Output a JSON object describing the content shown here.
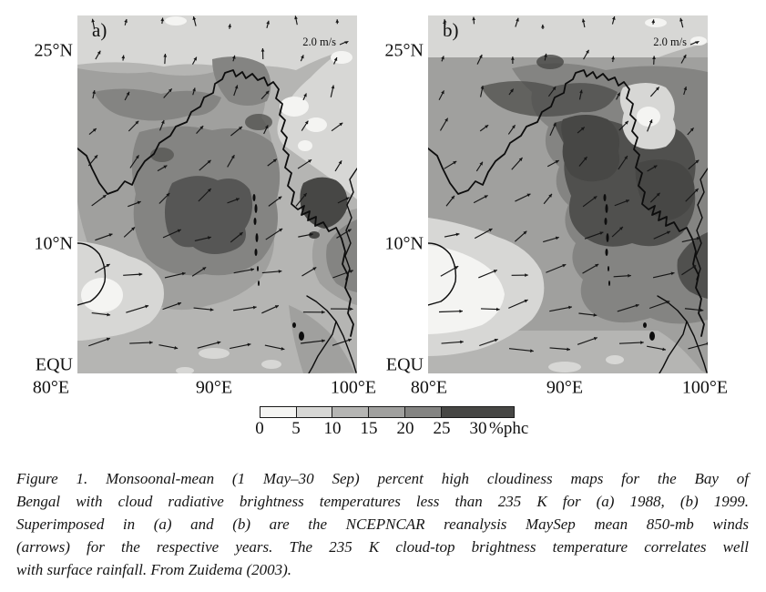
{
  "panels": [
    {
      "label": "a)",
      "ref_vector_label": "2.0 m/s"
    },
    {
      "label": "b)",
      "ref_vector_label": "2.0 m/s"
    }
  ],
  "axes": {
    "lat_labels": [
      "25°N",
      "10°N",
      "EQU"
    ],
    "lon_labels": [
      "80°E",
      "90°E",
      "100°E"
    ]
  },
  "colorbar": {
    "tick_labels": [
      "0",
      "5",
      "10",
      "15",
      "20",
      "25",
      "30"
    ],
    "unit_label": "%phc",
    "segment_colors": [
      "#f4f4f2",
      "#d7d7d5",
      "#b5b5b3",
      "#a0a09e",
      "#848482",
      "#474745"
    ]
  },
  "map": {
    "coast_color": "#0d0d0d",
    "arrow_color": "#161616"
  },
  "caption": {
    "lines": [
      "Figure 1.  Monsoonal-mean (1 May–30 Sep) percent high cloudiness maps for the Bay of",
      "Bengal with cloud radiative brightness temperatures less than 235 K for (a) 1988, (b) 1999.",
      "Superimposed in (a) and (b) are the NCEPNCAR reanalysis MaySep mean 850-mb winds",
      "(arrows) for the respective years. The 235 K cloud-top brightness temperature correlates well",
      "with surface rainfall. From Zuidema (2003)."
    ]
  },
  "chart_data": {
    "type": "heatmap",
    "title": "Monsoonal-mean (1 May–30 Sep) percent high cloudiness, Bay of Bengal",
    "panels": [
      {
        "id": "a",
        "year": "1988"
      },
      {
        "id": "b",
        "year": "1999"
      }
    ],
    "variable": "percent high cloudiness (%phc) with cloud radiative brightness temperatures < 235 K",
    "overlay": "NCEPNCAR reanalysis MaySep mean 850-mb winds (arrows), reference vector 2.0 m/s",
    "levels": [
      0,
      5,
      10,
      15,
      20,
      25,
      30
    ],
    "x_ticks": [
      "80°E",
      "90°E",
      "100°E"
    ],
    "y_ticks": [
      "EQU",
      "10°N",
      "25°N"
    ],
    "legend_position": "bottom",
    "source": "From Zuidema (2003)"
  }
}
